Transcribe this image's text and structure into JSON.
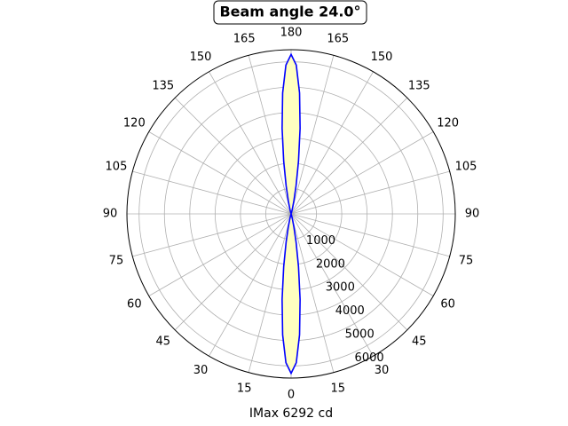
{
  "chart_data": {
    "type": "polar",
    "title": "Beam angle 24.0°",
    "xlabel": "IMax 6292 cd",
    "zero_location": "bottom",
    "rlim": [
      0,
      6480
    ],
    "rticks": [
      1000,
      2000,
      3000,
      4000,
      5000,
      6000
    ],
    "thetaticks": [
      0,
      15,
      30,
      45,
      60,
      75,
      90,
      105,
      120,
      135,
      150,
      165,
      180,
      {
        "value": -165,
        "label": "165"
      },
      {
        "value": -150,
        "label": "150"
      },
      {
        "value": -135,
        "label": "135"
      },
      {
        "value": -120,
        "label": "120"
      },
      {
        "value": -105,
        "label": "105"
      },
      {
        "value": -90,
        "label": "90"
      },
      {
        "value": -75,
        "label": "75"
      },
      {
        "value": -60,
        "label": "60"
      },
      {
        "value": -45,
        "label": "45"
      },
      {
        "value": -30,
        "label": "30"
      },
      {
        "value": -15,
        "label": "15"
      }
    ],
    "grid": true,
    "series": [
      {
        "color": "#0000ff",
        "fill_color": "#ffffc0",
        "theta": [
          -20,
          -18,
          -16,
          -14,
          -12,
          -10,
          -8,
          -6,
          -4,
          -2,
          0,
          2,
          4,
          6,
          8,
          10,
          12,
          14,
          16,
          18,
          20
        ],
        "values": [
          7,
          24,
          78,
          218,
          533,
          1133,
          2100,
          3394,
          4783,
          5875,
          6292,
          5875,
          4783,
          3394,
          2100,
          1133,
          533,
          218,
          78,
          24,
          7
        ]
      },
      {
        "color": "#0000ff",
        "fill_color": "#ffffc0",
        "theta": [
          160,
          162,
          164,
          166,
          168,
          170,
          172,
          174,
          176,
          178,
          180,
          182,
          184,
          186,
          188,
          190,
          192,
          194,
          196,
          198,
          200
        ],
        "values": [
          7,
          24,
          78,
          218,
          533,
          1133,
          2100,
          3394,
          4783,
          5875,
          6292,
          5875,
          4783,
          3394,
          2100,
          1133,
          533,
          218,
          78,
          24,
          7
        ]
      }
    ]
  }
}
